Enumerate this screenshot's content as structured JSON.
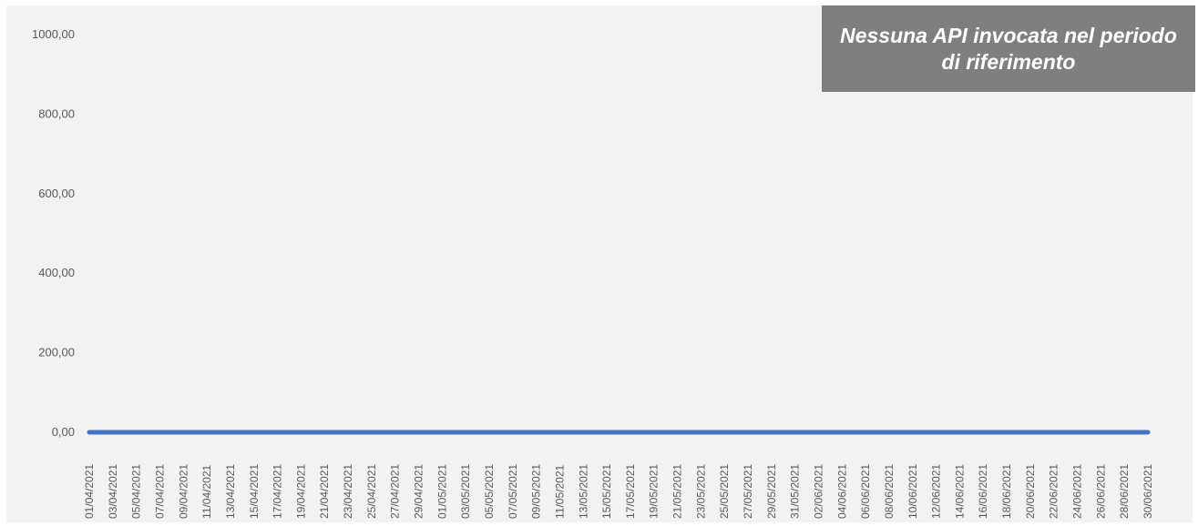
{
  "notice": {
    "text": "Nessuna API invocata nel periodo di riferimento"
  },
  "colors": {
    "plot_background": "#f2f2f2",
    "series_line": "#4472c4",
    "notice_background": "#7f7f7f",
    "tick_text": "#595959"
  },
  "chart_data": {
    "type": "line",
    "title": "",
    "xlabel": "",
    "ylabel": "",
    "ylim": [
      0,
      1000
    ],
    "y_ticks": [
      {
        "value": 0,
        "label": "0,00"
      },
      {
        "value": 200,
        "label": "200,00"
      },
      {
        "value": 400,
        "label": "400,00"
      },
      {
        "value": 600,
        "label": "600,00"
      },
      {
        "value": 800,
        "label": "800,00"
      },
      {
        "value": 1000,
        "label": "1000,00"
      }
    ],
    "x_tick_labels": [
      "01/04/2021",
      "03/04/2021",
      "05/04/2021",
      "07/04/2021",
      "09/04/2021",
      "11/04/2021",
      "13/04/2021",
      "15/04/2021",
      "17/04/2021",
      "19/04/2021",
      "21/04/2021",
      "23/04/2021",
      "25/04/2021",
      "27/04/2021",
      "29/04/2021",
      "01/05/2021",
      "03/05/2021",
      "05/05/2021",
      "07/05/2021",
      "09/05/2021",
      "11/05/2021",
      "13/05/2021",
      "15/05/2021",
      "17/05/2021",
      "19/05/2021",
      "21/05/2021",
      "23/05/2021",
      "25/05/2021",
      "27/05/2021",
      "29/05/2021",
      "31/05/2021",
      "02/06/2021",
      "04/06/2021",
      "06/06/2021",
      "08/06/2021",
      "10/06/2021",
      "12/06/2021",
      "14/06/2021",
      "16/06/2021",
      "18/06/2021",
      "20/06/2021",
      "22/06/2021",
      "24/06/2021",
      "26/06/2021",
      "28/06/2021",
      "30/06/2021"
    ],
    "x_start": "01/04/2021",
    "x_end": "30/06/2021",
    "grid": false,
    "series": [
      {
        "constant_value": 0,
        "values": [
          0,
          0,
          0,
          0,
          0,
          0,
          0,
          0,
          0,
          0,
          0,
          0,
          0,
          0,
          0,
          0,
          0,
          0,
          0,
          0,
          0,
          0,
          0,
          0,
          0,
          0,
          0,
          0,
          0,
          0,
          0,
          0,
          0,
          0,
          0,
          0,
          0,
          0,
          0,
          0,
          0,
          0,
          0,
          0,
          0,
          0,
          0,
          0,
          0,
          0,
          0,
          0,
          0,
          0,
          0,
          0,
          0,
          0,
          0,
          0,
          0,
          0,
          0,
          0,
          0,
          0,
          0,
          0,
          0,
          0,
          0,
          0,
          0,
          0,
          0,
          0,
          0,
          0,
          0,
          0,
          0,
          0,
          0,
          0,
          0,
          0,
          0,
          0,
          0,
          0,
          0
        ]
      }
    ]
  }
}
